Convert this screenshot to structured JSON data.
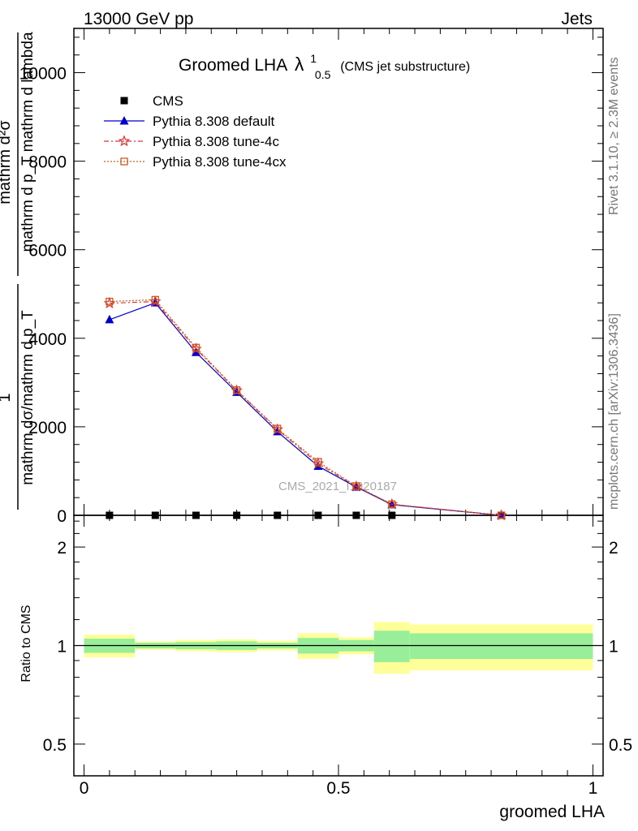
{
  "header": {
    "left": "13000 GeV pp",
    "right": "Jets"
  },
  "side": {
    "rivet": "Rivet 3.1.10, ≥ 2.3M events",
    "source": "mcplots.cern.ch [arXiv:1306.3436]"
  },
  "title": {
    "main": "Groomed LHA",
    "sym": "λ",
    "sup": "1",
    "sub": "0.5",
    "extra": "(CMS jet substructure)"
  },
  "watermark": "CMS_2021_I1920187",
  "ylabel_upper": {
    "num1": "1",
    "den1": "mathrm dσ/mathrm d p_T",
    "num2": "mathrm d²σ",
    "den2": "mathrm d p_T mathrm d lambda"
  },
  "ylabel_lower": "Ratio to CMS",
  "xlabel": "groomed LHA",
  "legend": [
    {
      "label": "CMS",
      "color": "#000000",
      "marker": "square"
    },
    {
      "label": "Pythia 8.308 default",
      "color": "#0000cc",
      "marker": "triangle"
    },
    {
      "label": "Pythia 8.308 tune-4c",
      "color": "#e03030",
      "marker": "star"
    },
    {
      "label": "Pythia 8.308 tune-4cx",
      "color": "#cc5a1a",
      "marker": "opensquare"
    }
  ],
  "chart_data": [
    {
      "type": "line",
      "panel": "main",
      "x": [
        0.05,
        0.14,
        0.22,
        0.3,
        0.38,
        0.46,
        0.535,
        0.605,
        0.82
      ],
      "xlim": [
        -0.02,
        1.02
      ],
      "ylim": [
        0,
        11000
      ],
      "yticks": [
        0,
        2000,
        4000,
        6000,
        8000,
        10000
      ],
      "ytick_labels": [
        "0",
        "2000",
        "4000",
        "6000",
        "8000",
        "10000"
      ],
      "series": [
        {
          "name": "CMS",
          "values": [
            0,
            0,
            0,
            0,
            0,
            0,
            0,
            0,
            0
          ]
        },
        {
          "name": "Pythia 8.308 default",
          "values": [
            4420,
            4800,
            3680,
            2780,
            1890,
            1110,
            640,
            240,
            0
          ]
        },
        {
          "name": "Pythia 8.308 tune-4c",
          "values": [
            4790,
            4830,
            3760,
            2820,
            1940,
            1170,
            650,
            250,
            0
          ]
        },
        {
          "name": "Pythia 8.308 tune-4cx",
          "values": [
            4830,
            4870,
            3790,
            2830,
            1960,
            1210,
            660,
            250,
            0
          ]
        }
      ],
      "grid": false,
      "legend_position": "top-left"
    },
    {
      "type": "area",
      "panel": "ratio",
      "bin_edges": [
        0.0,
        0.1,
        0.18,
        0.26,
        0.34,
        0.42,
        0.5,
        0.57,
        0.64,
        1.0
      ],
      "band_inner_halfwidth": [
        0.05,
        0.02,
        0.025,
        0.03,
        0.02,
        0.055,
        0.04,
        0.11,
        0.09
      ],
      "band_outer_halfwidth": [
        0.08,
        0.03,
        0.04,
        0.045,
        0.035,
        0.09,
        0.06,
        0.18,
        0.16
      ],
      "reference": 1,
      "xlim": [
        -0.02,
        1.02
      ],
      "yscale": "log",
      "ylim": [
        0.4,
        2.5
      ],
      "yticks": [
        0.5,
        1,
        2
      ],
      "ytick_labels": [
        "0.5",
        "1",
        "2"
      ],
      "xticks": [
        0,
        0.5,
        1
      ],
      "xtick_labels": [
        "0",
        "0.5",
        "1"
      ],
      "colors": {
        "inner": "#99ee99",
        "outer": "#ffff99"
      }
    }
  ]
}
